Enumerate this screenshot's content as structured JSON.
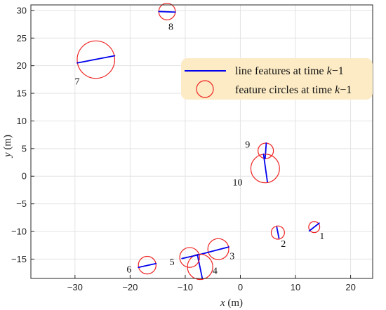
{
  "chart_data": {
    "type": "scatter",
    "xlabel_var": "x",
    "xlabel_unit": " (m)",
    "ylabel_var": "y",
    "ylabel_unit": " (m)",
    "xlim": [
      -38,
      24
    ],
    "ylim": [
      -18.5,
      31
    ],
    "xticks": [
      -30,
      -20,
      -10,
      0,
      10,
      20
    ],
    "yticks": [
      -15,
      -10,
      -5,
      0,
      5,
      10,
      15,
      20,
      25,
      30
    ],
    "grid": true,
    "legend_position": "top-right",
    "legend": [
      {
        "kind": "line",
        "prefix": "line features at time ",
        "var": "k",
        "suffix": "−1",
        "color": "#0000ee"
      },
      {
        "kind": "circle",
        "prefix": "feature circles at time ",
        "var": "k",
        "suffix": "−1",
        "color": "#ee2222"
      }
    ],
    "features": [
      {
        "id": "1",
        "circle": {
          "cx": 13.4,
          "cy": -9.2,
          "r": 1.0
        },
        "line": [
          [
            12.5,
            -9.9
          ],
          [
            14.3,
            -8.5
          ]
        ],
        "label_at": [
          14.8,
          -11.4
        ]
      },
      {
        "id": "2",
        "circle": {
          "cx": 6.8,
          "cy": -10.2,
          "r": 1.2
        },
        "line": [
          [
            6.6,
            -9.2
          ],
          [
            7.0,
            -11.2
          ]
        ],
        "label_at": [
          7.8,
          -12.8
        ]
      },
      {
        "id": "3",
        "circle": {
          "cx": -4.0,
          "cy": -13.2,
          "r": 1.9
        },
        "line": [
          [
            -7.5,
            -14.2
          ],
          [
            -2.1,
            -12.8
          ]
        ],
        "label_at": [
          -1.5,
          -15.0
        ]
      },
      {
        "id": "4",
        "circle": {
          "cx": -7.3,
          "cy": -16.4,
          "r": 2.3
        },
        "line": [
          [
            -7.8,
            -14.2
          ],
          [
            -6.9,
            -18.5
          ]
        ],
        "label_at": [
          -4.6,
          -17.7
        ]
      },
      {
        "id": "5",
        "circle": {
          "cx": -9.2,
          "cy": -14.7,
          "r": 1.8
        },
        "line": [
          [
            -10.6,
            -14.9
          ],
          [
            -7.5,
            -14.2
          ]
        ],
        "label_at": [
          -12.4,
          -16.1
        ]
      },
      {
        "id": "6",
        "circle": {
          "cx": -16.9,
          "cy": -16.1,
          "r": 1.6
        },
        "line": [
          [
            -18.5,
            -16.5
          ],
          [
            -15.3,
            -15.8
          ]
        ],
        "label_at": [
          -20.2,
          -17.4
        ]
      },
      {
        "id": "7",
        "circle": {
          "cx": -26.2,
          "cy": 21.1,
          "r": 3.4
        },
        "line": [
          [
            -29.6,
            20.5
          ],
          [
            -22.8,
            21.8
          ]
        ],
        "label_at": [
          -29.6,
          16.6
        ]
      },
      {
        "id": "8",
        "circle": {
          "cx": -13.3,
          "cy": 29.8,
          "r": 1.5
        },
        "line": [
          [
            -14.8,
            29.8
          ],
          [
            -11.8,
            29.7
          ]
        ],
        "label_at": [
          -12.6,
          26.5
        ]
      },
      {
        "id": "9",
        "circle": {
          "cx": 4.6,
          "cy": 4.6,
          "r": 1.4
        },
        "line": [
          [
            4.7,
            6.0
          ],
          [
            4.5,
            3.2
          ]
        ],
        "label_at": [
          1.3,
          5.2
        ]
      },
      {
        "id": "10",
        "circle": {
          "cx": 4.5,
          "cy": 1.4,
          "r": 2.6
        },
        "line": [
          [
            4.2,
            4.0
          ],
          [
            4.9,
            -1.0
          ]
        ],
        "label_at": [
          -0.5,
          -1.7
        ]
      }
    ]
  }
}
